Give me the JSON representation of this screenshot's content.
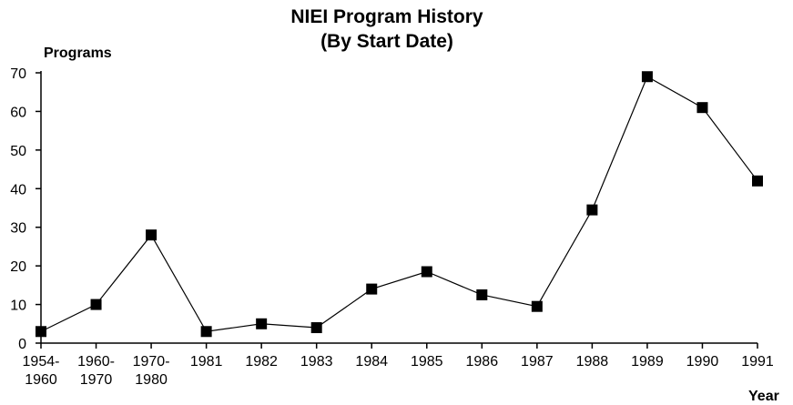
{
  "chart_data": {
    "type": "line",
    "title": "NIEI Program History",
    "subtitle": "(By Start Date)",
    "y_label": "Programs",
    "x_label": "Year",
    "categories": [
      "1954-1960",
      "1960-1970",
      "1970-1980",
      "1981",
      "1982",
      "1983",
      "1984",
      "1985",
      "1986",
      "1987",
      "1988",
      "1989",
      "1990",
      "1991"
    ],
    "series": [
      {
        "name": "Programs",
        "color": "#000000",
        "values": [
          3,
          10,
          28,
          3,
          5,
          4,
          14,
          18.5,
          12.5,
          9.5,
          34.5,
          69,
          61,
          42
        ]
      }
    ],
    "ylim": [
      0,
      70
    ],
    "yticks": [
      0,
      10,
      20,
      30,
      40,
      50,
      60,
      70
    ],
    "grid": false
  }
}
